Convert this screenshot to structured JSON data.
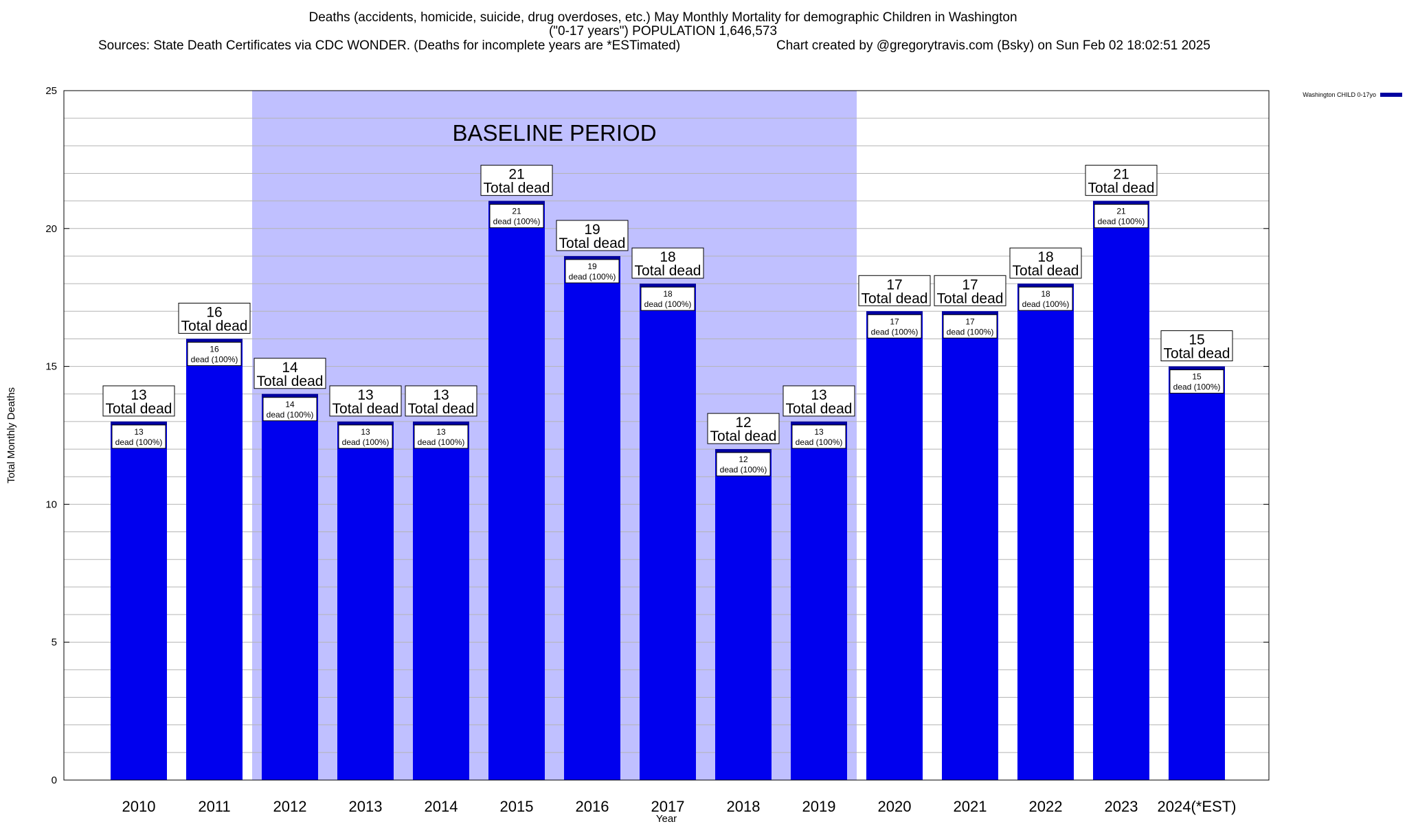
{
  "chart_data": {
    "type": "bar",
    "title": "Deaths (accidents, homicide, suicide, drug overdoses, etc.) May Monthly Mortality for demographic Children in Washington",
    "subtitle": "(\"0-17 years\") POPULATION 1,646,573",
    "source_line": "Sources: State Death Certificates via CDC WONDER. (Deaths for incomplete years are *ESTimated)",
    "credit_line": "Chart created by @gregorytravis.com (Bsky) on Sun Feb 02 18:02:51 2025",
    "xlabel": "Year",
    "ylabel": "Total Monthly Deaths",
    "ylim": [
      0,
      25
    ],
    "yticks": [
      0,
      5,
      10,
      15,
      20,
      25
    ],
    "grid": true,
    "categories": [
      "2010",
      "2011",
      "2012",
      "2013",
      "2014",
      "2015",
      "2016",
      "2017",
      "2018",
      "2019",
      "2020",
      "2021",
      "2022",
      "2023",
      "2024(*EST)"
    ],
    "series": [
      {
        "name": "Washington CHILD 0-17yo",
        "color": "#0000ee",
        "cap_color": "#0000a0",
        "values": [
          13,
          16,
          14,
          13,
          13,
          21,
          19,
          18,
          12,
          13,
          17,
          17,
          18,
          21,
          15
        ]
      }
    ],
    "top_label_text": "Total dead",
    "inner_label_text": "dead (100%)",
    "baseline": {
      "label": "BASELINE PERIOD",
      "start": "2012",
      "end": "2019",
      "color": "#c0c0ff"
    },
    "legend_position": "top-right"
  }
}
